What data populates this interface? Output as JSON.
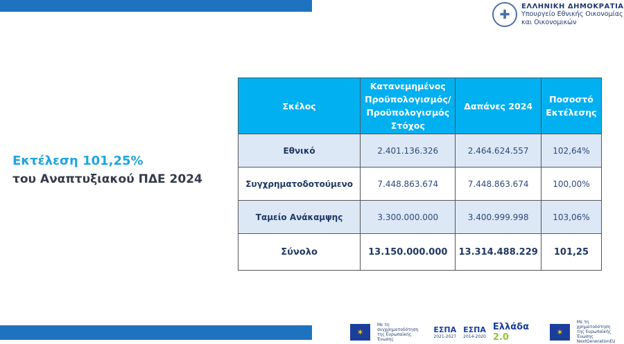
{
  "header": {
    "org_line1": "ΕΛΛΗΝΙΚΗ ΔΗΜΟΚΡΑΤΙΑ",
    "org_line2": "Υπουργείο Εθνικής Οικονομίας",
    "org_line3": "και Οικονομικών"
  },
  "headline": {
    "line1": "Εκτέλεση 101,25%",
    "line2": "του Αναπτυξιακού ΠΔΕ 2024"
  },
  "table": {
    "columns": [
      "Σκέλος",
      "Κατανεμημένος Προϋπολογισμός/ Προϋπολογισμός Στόχος",
      "Δαπάνες 2024",
      "Ποσοστό Εκτέλεσης"
    ],
    "rows": [
      [
        "Εθνικό",
        "2.401.136.326",
        "2.464.624.557",
        "102,64%"
      ],
      [
        "Συγχρηματοδοτούμενο",
        "7.448.863.674",
        "7.448.863.674",
        "100,00%"
      ],
      [
        "Ταμείο Ανάκαμψης",
        "3.300.000.000",
        "3.400.999.998",
        "103,06%"
      ],
      [
        "Σύνολο",
        "13.150.000.000",
        "13.314.488.229",
        "101,25"
      ]
    ]
  },
  "footer": {
    "eu1_line1": "Με τη συγχρηματοδότηση",
    "eu1_line2": "της Ευρωπαϊκής Ένωσης",
    "espa1": "ΕΣΠΑ",
    "espa1_years": "2021-2027",
    "espa2": "ΕΣΠΑ",
    "espa2_years": "2014-2020",
    "ellada": "Ελλάδα",
    "ellada_ver": "2.0",
    "eu2_line1": "Με τη χρηματοδότηση",
    "eu2_line2": "της Ευρωπαϊκής Ένωσης",
    "eu2_line3": "NextGenerationEU"
  },
  "colors": {
    "accent": "#00b0f0",
    "bar": "#1e73be",
    "navy": "#1f3864",
    "row_alt": "#dce8f6"
  }
}
